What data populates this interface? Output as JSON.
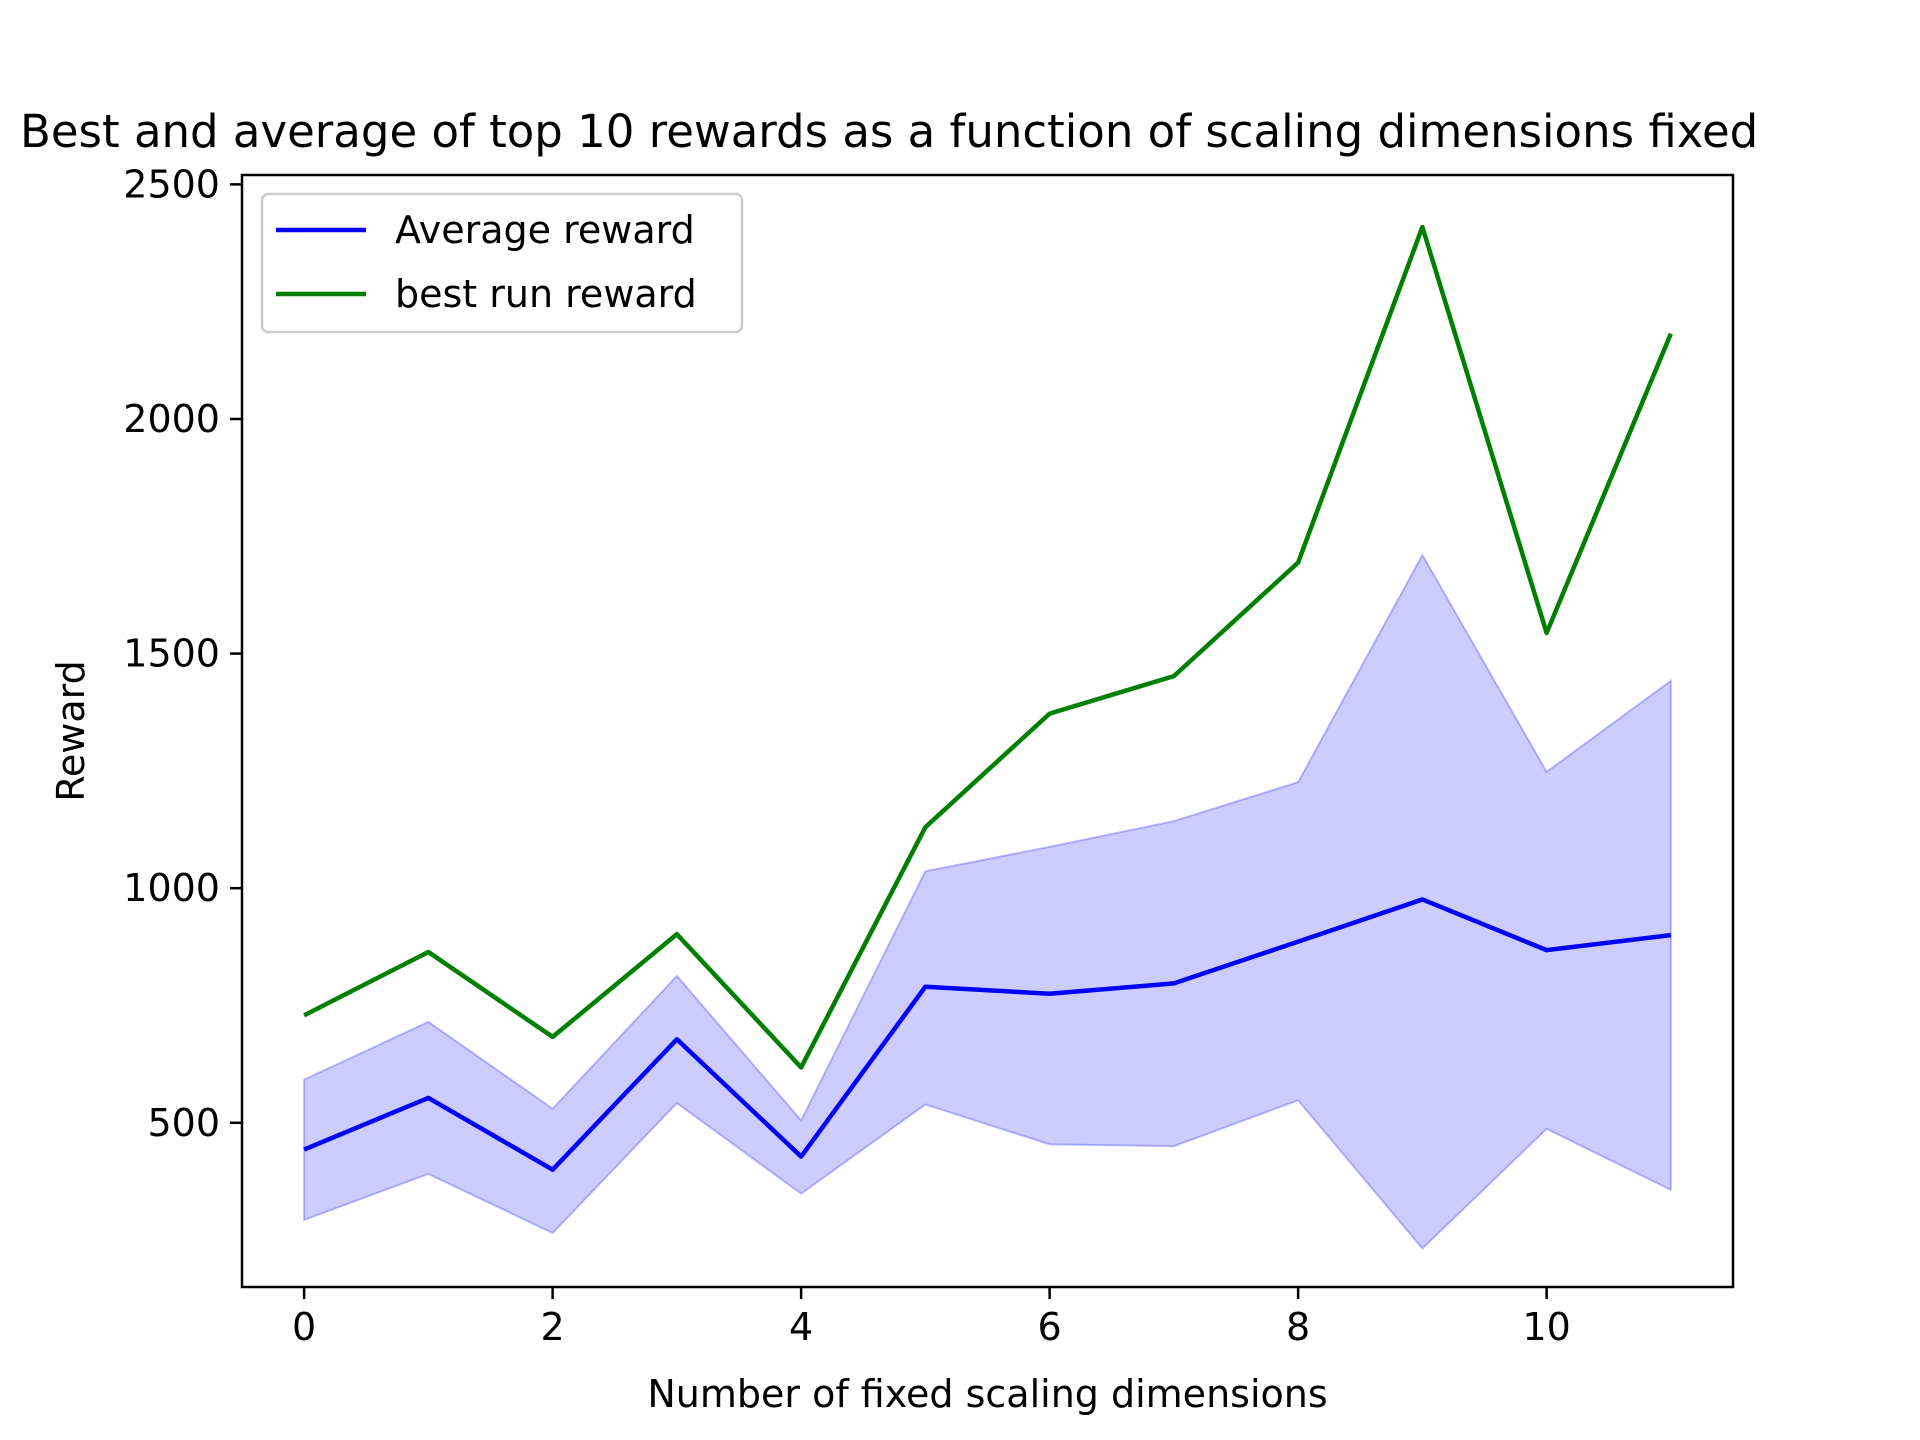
{
  "chart_data": {
    "type": "line",
    "title": "Best and average of top 10 rewards as a function of scaling dimensions fixed",
    "xlabel": "Number of fixed scaling dimensions",
    "ylabel": "Reward",
    "xlim": [
      -0.5,
      11.5
    ],
    "ylim": [
      150,
      2520
    ],
    "xticks": [
      0,
      2,
      4,
      6,
      8,
      10
    ],
    "yticks": [
      500,
      1000,
      1500,
      2000,
      2500
    ],
    "grid": false,
    "legend_position": "upper-left",
    "x": [
      0,
      1,
      2,
      3,
      4,
      5,
      6,
      7,
      8,
      9,
      10,
      11
    ],
    "series": [
      {
        "name": "Average reward",
        "color": "#0000ff",
        "values": [
          443,
          553,
          400,
          678,
          428,
          790,
          775,
          797,
          886,
          976,
          868,
          900
        ]
      },
      {
        "name": "best run reward",
        "color": "#008000",
        "values": [
          729,
          864,
          683,
          902,
          618,
          1130,
          1372,
          1452,
          1694,
          2409,
          1544,
          2182
        ]
      }
    ],
    "band": {
      "series": "Average reward",
      "color": "#0000ff",
      "opacity": 0.2,
      "lower": [
        293,
        391,
        265,
        542,
        349,
        539,
        454,
        450,
        548,
        232,
        487,
        357
      ],
      "upper": [
        592,
        715,
        530,
        813,
        505,
        1036,
        1088,
        1143,
        1226,
        1710,
        1248,
        1442
      ]
    }
  }
}
